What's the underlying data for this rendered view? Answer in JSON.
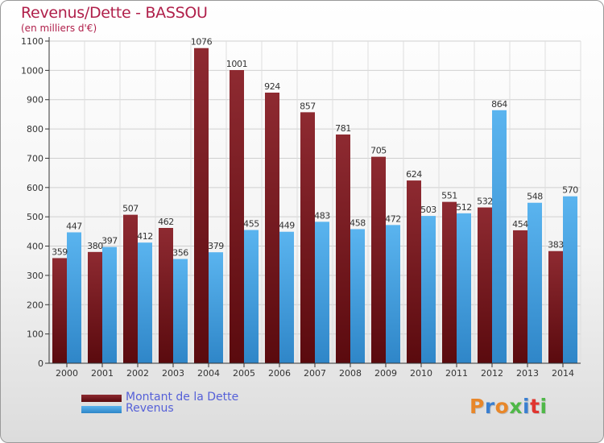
{
  "header": {
    "title": "Revenus/Dette - BASSOU",
    "subtitle": "(en milliers d'€)"
  },
  "legend": {
    "items": [
      {
        "label": "Montant de la Dette",
        "color": "#7a1a1f"
      },
      {
        "label": "Revenus",
        "color": "#4aa3e0"
      }
    ]
  },
  "logo": {
    "text": "Proxiti",
    "letter_colors": [
      "#e8872a",
      "#3a7fd0",
      "#e8872a",
      "#4fb848",
      "#3a7fd0",
      "#e0342f",
      "#4fb848"
    ]
  },
  "chart_data": {
    "type": "bar",
    "title": "Revenus/Dette - BASSOU",
    "subtitle": "(en milliers d'€)",
    "xlabel": "",
    "ylabel": "",
    "ylim": [
      0,
      1100
    ],
    "yticks": [
      0,
      100,
      200,
      300,
      400,
      500,
      600,
      700,
      800,
      900,
      1000,
      1100
    ],
    "grid": true,
    "legend_position": "bottom-left",
    "categories": [
      "2000",
      "2001",
      "2002",
      "2003",
      "2004",
      "2005",
      "2006",
      "2007",
      "2008",
      "2009",
      "2010",
      "2011",
      "2012",
      "2013",
      "2014"
    ],
    "series": [
      {
        "name": "Montant de la Dette",
        "color": "#7a1a1f",
        "values": [
          359,
          380,
          507,
          462,
          1076,
          1001,
          924,
          857,
          781,
          705,
          624,
          551,
          532,
          454,
          383
        ]
      },
      {
        "name": "Revenus",
        "color": "#4aa3e0",
        "values": [
          447,
          397,
          412,
          356,
          379,
          455,
          449,
          483,
          458,
          472,
          503,
          512,
          864,
          548,
          570
        ]
      }
    ]
  }
}
